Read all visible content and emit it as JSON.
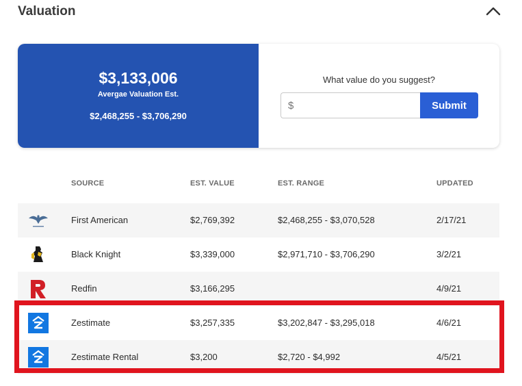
{
  "section": {
    "title": "Valuation"
  },
  "summary": {
    "average_value": "$3,133,006",
    "average_label": "Avergae Valuation Est.",
    "range": "$2,468,255 - $3,706,290"
  },
  "suggest": {
    "question": "What value do you suggest?",
    "currency_placeholder": "$",
    "submit_label": "Submit"
  },
  "table": {
    "headers": {
      "source": "SOURCE",
      "value": "EST. VALUE",
      "range": "EST. RANGE",
      "updated": "UPDATED"
    },
    "rows": [
      {
        "source": "First American",
        "value": "$2,769,392",
        "range": "$2,468,255 - $3,070,528",
        "updated": "2/17/21",
        "logo_icon": "eagle-icon"
      },
      {
        "source": "Black Knight",
        "value": "$3,339,000",
        "range": "$2,971,710 - $3,706,290",
        "updated": "3/2/21",
        "logo_icon": "knight-icon"
      },
      {
        "source": "Redfin",
        "value": "$3,166,295",
        "range": "",
        "updated": "4/9/21",
        "logo_icon": "redfin-r-icon",
        "logo_color": "#d11f26"
      },
      {
        "source": "Zestimate",
        "value": "$3,257,335",
        "range": "$3,202,847 - $3,295,018",
        "updated": "4/6/21",
        "logo_icon": "zillow-icon",
        "logo_color": "#1277e1"
      },
      {
        "source": "Zestimate Rental",
        "value": "$3,200",
        "range": "$2,720 - $4,992",
        "updated": "4/5/21",
        "logo_icon": "zillow-icon",
        "logo_color": "#1277e1"
      }
    ]
  },
  "colors": {
    "summary_bg": "#2453b1",
    "submit_bg": "#2a5fd5",
    "highlight_border": "#e0141e"
  }
}
